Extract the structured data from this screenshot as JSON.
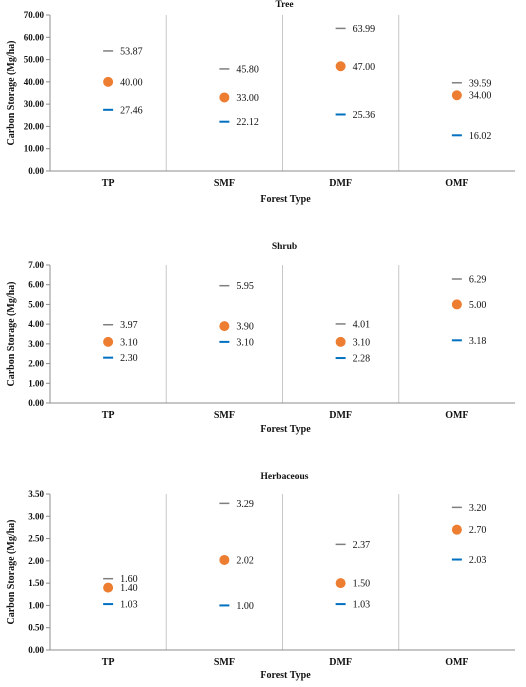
{
  "chart_data": [
    {
      "type": "scatter",
      "title": "Tree",
      "xlabel": "Forest Type",
      "ylabel": "Carbon Storage (Mg/ha)",
      "categories": [
        "TP",
        "SMF",
        "DMF",
        "OMF"
      ],
      "ylim": [
        0,
        70
      ],
      "ytick_step": 10,
      "ytick_labels": [
        "0.00",
        "10.00",
        "20.00",
        "30.00",
        "40.00",
        "50.00",
        "60.00",
        "70.00"
      ],
      "series": [
        {
          "role": "max",
          "color": "#7f7f7f",
          "values": [
            53.87,
            45.8,
            63.99,
            39.59
          ],
          "labels": [
            "53.87",
            "45.80",
            "63.99",
            "39.59"
          ]
        },
        {
          "role": "mean",
          "color": "#ed7d31",
          "values": [
            40.0,
            33.0,
            47.0,
            34.0
          ],
          "labels": [
            "40.00",
            "33.00",
            "47.00",
            "34.00"
          ]
        },
        {
          "role": "min",
          "color": "#0070c0",
          "values": [
            27.46,
            22.12,
            25.36,
            16.02
          ],
          "labels": [
            "27.46",
            "22.12",
            "25.36",
            "16.02"
          ]
        }
      ]
    },
    {
      "type": "scatter",
      "title": "Shrub",
      "xlabel": "Forest Type",
      "ylabel": "Carbon Storage (Mg/ha)",
      "categories": [
        "TP",
        "SMF",
        "DMF",
        "OMF"
      ],
      "ylim": [
        0,
        7
      ],
      "ytick_step": 1,
      "ytick_labels": [
        "0.00",
        "1.00",
        "2.00",
        "3.00",
        "4.00",
        "5.00",
        "6.00",
        "7.00"
      ],
      "series": [
        {
          "role": "max",
          "color": "#7f7f7f",
          "values": [
            3.97,
            5.95,
            4.01,
            6.29
          ],
          "labels": [
            "3.97",
            "5.95",
            "4.01",
            "6.29"
          ]
        },
        {
          "role": "mean",
          "color": "#ed7d31",
          "values": [
            3.1,
            3.9,
            3.1,
            5.0
          ],
          "labels": [
            "3.10",
            "3.90",
            "3.10",
            "5.00"
          ]
        },
        {
          "role": "min",
          "color": "#0070c0",
          "values": [
            2.3,
            3.1,
            2.28,
            3.18
          ],
          "labels": [
            "2.30",
            "3.10",
            "2.28",
            "3.18"
          ]
        }
      ]
    },
    {
      "type": "scatter",
      "title": "Herbaceous",
      "xlabel": "Forest Type",
      "ylabel": "Carbon Storage (Mg/ha)",
      "categories": [
        "TP",
        "SMF",
        "DMF",
        "OMF"
      ],
      "ylim": [
        0,
        3.5
      ],
      "ytick_step": 0.5,
      "ytick_labels": [
        "0.00",
        "0.50",
        "1.00",
        "1.50",
        "2.00",
        "2.50",
        "3.00",
        "3.50"
      ],
      "series": [
        {
          "role": "max",
          "color": "#7f7f7f",
          "values": [
            1.6,
            3.29,
            2.37,
            3.2
          ],
          "labels": [
            "1.60",
            "3.29",
            "2.37",
            "3.20"
          ]
        },
        {
          "role": "mean",
          "color": "#ed7d31",
          "values": [
            1.4,
            2.02,
            1.5,
            2.7
          ],
          "labels": [
            "1.40",
            "2.02",
            "1.50",
            "2.70"
          ]
        },
        {
          "role": "min",
          "color": "#0070c0",
          "values": [
            1.03,
            1.0,
            1.03,
            2.03
          ],
          "labels": [
            "1.03",
            "1.00",
            "1.03",
            "2.03"
          ]
        }
      ]
    }
  ]
}
